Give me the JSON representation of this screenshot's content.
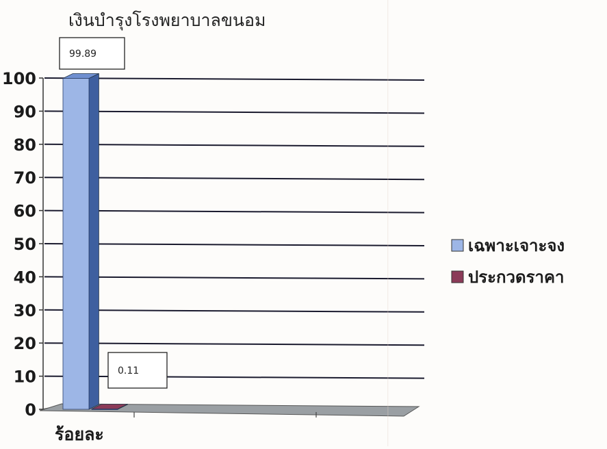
{
  "chart_data": {
    "type": "bar",
    "title": "เงินบำรุงโรงพยาบาลขนอม",
    "xlabel": "",
    "ylabel": "",
    "categories": [
      "ร้อยละ"
    ],
    "series": [
      {
        "name": "เฉพาะเจาะจง",
        "values": [
          99.89
        ],
        "label": "99.89"
      },
      {
        "name": "ประกวดราคา",
        "values": [
          0.11
        ],
        "label": "0.11"
      }
    ],
    "ylim": [
      0,
      100
    ],
    "yticks": [
      "0",
      "10",
      "20",
      "30",
      "40",
      "50",
      "60",
      "70",
      "80",
      "90",
      "100"
    ],
    "grid": true,
    "legend_position": "right",
    "colors": {
      "series1_front": "#9db6e6",
      "series1_side": "#3e5f9f",
      "series1_top": "#6f8fd0",
      "series2_front": "#8b3b58",
      "series2_side": "#5c2238",
      "floor": "#9a9fa3",
      "grid": "#1a1a2e",
      "axis_text": "#1b1b1b"
    }
  }
}
